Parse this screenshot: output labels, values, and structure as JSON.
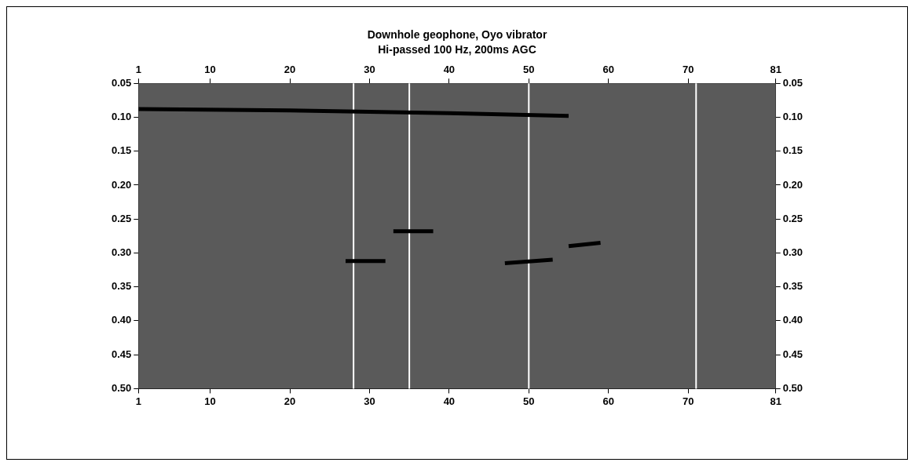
{
  "chart_data": {
    "type": "line",
    "title": "Downhole geophone, Oyo vibrator",
    "subtitle": "Hi-passed 100 Hz, 200ms AGC",
    "xlim": [
      1,
      81
    ],
    "xticks": [
      1,
      10,
      20,
      30,
      40,
      50,
      60,
      70,
      81
    ],
    "ylim": [
      0.05,
      0.5
    ],
    "yticks": [
      {
        "value": 0.05,
        "label": "0.05"
      },
      {
        "value": 0.1,
        "label": "0.10"
      },
      {
        "value": 0.15,
        "label": "0.15"
      },
      {
        "value": 0.2,
        "label": "0.20"
      },
      {
        "value": 0.25,
        "label": "0.25"
      },
      {
        "value": 0.3,
        "label": "0.30"
      },
      {
        "value": 0.35,
        "label": "0.35"
      },
      {
        "value": 0.4,
        "label": "0.40"
      },
      {
        "value": 0.45,
        "label": "0.45"
      },
      {
        "value": 0.5,
        "label": "0.50"
      }
    ],
    "grid": false,
    "dead_traces": [
      28,
      35,
      50,
      71
    ],
    "events": [
      {
        "x": [
          1,
          20,
          40,
          55
        ],
        "y": [
          0.088,
          0.09,
          0.094,
          0.098
        ],
        "color": "#000000"
      },
      {
        "x": [
          27,
          32
        ],
        "y": [
          0.312,
          0.312
        ],
        "color": "#000000"
      },
      {
        "x": [
          33,
          38
        ],
        "y": [
          0.268,
          0.268
        ],
        "color": "#000000"
      },
      {
        "x": [
          47,
          53
        ],
        "y": [
          0.315,
          0.31
        ],
        "color": "#000000"
      },
      {
        "x": [
          55,
          59
        ],
        "y": [
          0.29,
          0.285
        ],
        "color": "#000000"
      }
    ]
  }
}
